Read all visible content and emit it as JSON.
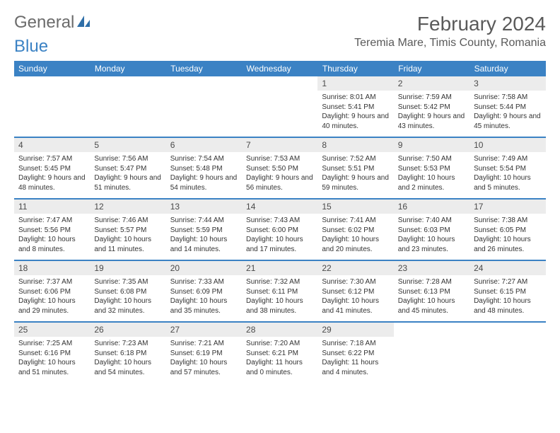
{
  "logo": {
    "text1": "General",
    "text2": "Blue"
  },
  "title": "February 2024",
  "location": "Teremia Mare, Timis County, Romania",
  "weekdays": [
    "Sunday",
    "Monday",
    "Tuesday",
    "Wednesday",
    "Thursday",
    "Friday",
    "Saturday"
  ],
  "colors": {
    "header_bg": "#3b82c4",
    "daynum_bg": "#ececec",
    "rule": "#3b82c4"
  },
  "weeks": [
    [
      null,
      null,
      null,
      null,
      {
        "n": "1",
        "sr": "Sunrise: 8:01 AM",
        "ss": "Sunset: 5:41 PM",
        "dl": "Daylight: 9 hours and 40 minutes."
      },
      {
        "n": "2",
        "sr": "Sunrise: 7:59 AM",
        "ss": "Sunset: 5:42 PM",
        "dl": "Daylight: 9 hours and 43 minutes."
      },
      {
        "n": "3",
        "sr": "Sunrise: 7:58 AM",
        "ss": "Sunset: 5:44 PM",
        "dl": "Daylight: 9 hours and 45 minutes."
      }
    ],
    [
      {
        "n": "4",
        "sr": "Sunrise: 7:57 AM",
        "ss": "Sunset: 5:45 PM",
        "dl": "Daylight: 9 hours and 48 minutes."
      },
      {
        "n": "5",
        "sr": "Sunrise: 7:56 AM",
        "ss": "Sunset: 5:47 PM",
        "dl": "Daylight: 9 hours and 51 minutes."
      },
      {
        "n": "6",
        "sr": "Sunrise: 7:54 AM",
        "ss": "Sunset: 5:48 PM",
        "dl": "Daylight: 9 hours and 54 minutes."
      },
      {
        "n": "7",
        "sr": "Sunrise: 7:53 AM",
        "ss": "Sunset: 5:50 PM",
        "dl": "Daylight: 9 hours and 56 minutes."
      },
      {
        "n": "8",
        "sr": "Sunrise: 7:52 AM",
        "ss": "Sunset: 5:51 PM",
        "dl": "Daylight: 9 hours and 59 minutes."
      },
      {
        "n": "9",
        "sr": "Sunrise: 7:50 AM",
        "ss": "Sunset: 5:53 PM",
        "dl": "Daylight: 10 hours and 2 minutes."
      },
      {
        "n": "10",
        "sr": "Sunrise: 7:49 AM",
        "ss": "Sunset: 5:54 PM",
        "dl": "Daylight: 10 hours and 5 minutes."
      }
    ],
    [
      {
        "n": "11",
        "sr": "Sunrise: 7:47 AM",
        "ss": "Sunset: 5:56 PM",
        "dl": "Daylight: 10 hours and 8 minutes."
      },
      {
        "n": "12",
        "sr": "Sunrise: 7:46 AM",
        "ss": "Sunset: 5:57 PM",
        "dl": "Daylight: 10 hours and 11 minutes."
      },
      {
        "n": "13",
        "sr": "Sunrise: 7:44 AM",
        "ss": "Sunset: 5:59 PM",
        "dl": "Daylight: 10 hours and 14 minutes."
      },
      {
        "n": "14",
        "sr": "Sunrise: 7:43 AM",
        "ss": "Sunset: 6:00 PM",
        "dl": "Daylight: 10 hours and 17 minutes."
      },
      {
        "n": "15",
        "sr": "Sunrise: 7:41 AM",
        "ss": "Sunset: 6:02 PM",
        "dl": "Daylight: 10 hours and 20 minutes."
      },
      {
        "n": "16",
        "sr": "Sunrise: 7:40 AM",
        "ss": "Sunset: 6:03 PM",
        "dl": "Daylight: 10 hours and 23 minutes."
      },
      {
        "n": "17",
        "sr": "Sunrise: 7:38 AM",
        "ss": "Sunset: 6:05 PM",
        "dl": "Daylight: 10 hours and 26 minutes."
      }
    ],
    [
      {
        "n": "18",
        "sr": "Sunrise: 7:37 AM",
        "ss": "Sunset: 6:06 PM",
        "dl": "Daylight: 10 hours and 29 minutes."
      },
      {
        "n": "19",
        "sr": "Sunrise: 7:35 AM",
        "ss": "Sunset: 6:08 PM",
        "dl": "Daylight: 10 hours and 32 minutes."
      },
      {
        "n": "20",
        "sr": "Sunrise: 7:33 AM",
        "ss": "Sunset: 6:09 PM",
        "dl": "Daylight: 10 hours and 35 minutes."
      },
      {
        "n": "21",
        "sr": "Sunrise: 7:32 AM",
        "ss": "Sunset: 6:11 PM",
        "dl": "Daylight: 10 hours and 38 minutes."
      },
      {
        "n": "22",
        "sr": "Sunrise: 7:30 AM",
        "ss": "Sunset: 6:12 PM",
        "dl": "Daylight: 10 hours and 41 minutes."
      },
      {
        "n": "23",
        "sr": "Sunrise: 7:28 AM",
        "ss": "Sunset: 6:13 PM",
        "dl": "Daylight: 10 hours and 45 minutes."
      },
      {
        "n": "24",
        "sr": "Sunrise: 7:27 AM",
        "ss": "Sunset: 6:15 PM",
        "dl": "Daylight: 10 hours and 48 minutes."
      }
    ],
    [
      {
        "n": "25",
        "sr": "Sunrise: 7:25 AM",
        "ss": "Sunset: 6:16 PM",
        "dl": "Daylight: 10 hours and 51 minutes."
      },
      {
        "n": "26",
        "sr": "Sunrise: 7:23 AM",
        "ss": "Sunset: 6:18 PM",
        "dl": "Daylight: 10 hours and 54 minutes."
      },
      {
        "n": "27",
        "sr": "Sunrise: 7:21 AM",
        "ss": "Sunset: 6:19 PM",
        "dl": "Daylight: 10 hours and 57 minutes."
      },
      {
        "n": "28",
        "sr": "Sunrise: 7:20 AM",
        "ss": "Sunset: 6:21 PM",
        "dl": "Daylight: 11 hours and 0 minutes."
      },
      {
        "n": "29",
        "sr": "Sunrise: 7:18 AM",
        "ss": "Sunset: 6:22 PM",
        "dl": "Daylight: 11 hours and 4 minutes."
      },
      null,
      null
    ]
  ]
}
